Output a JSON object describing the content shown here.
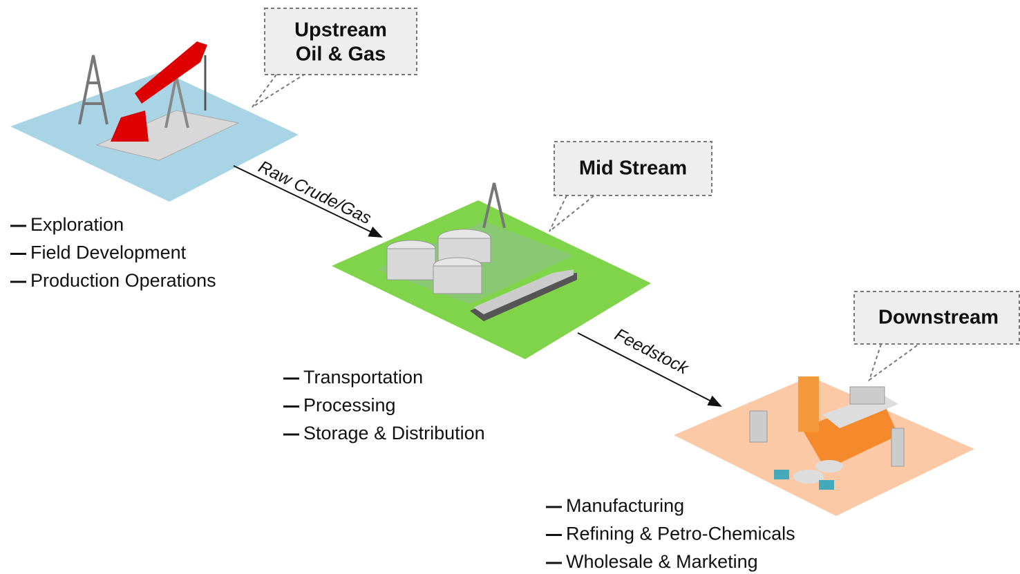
{
  "stages": [
    {
      "title_lines": [
        "Upstream",
        "Oil & Gas"
      ],
      "items": [
        "Exploration",
        "Field Development",
        "Production Operations"
      ]
    },
    {
      "title_lines": [
        "Mid Stream"
      ],
      "items": [
        "Transportation",
        "Processing",
        "Storage & Distribution"
      ]
    },
    {
      "title_lines": [
        "Downstream"
      ],
      "items": [
        "Manufacturing",
        "Refining & Petro-Chemicals",
        "Wholesale & Marketing"
      ]
    }
  ],
  "flows": [
    {
      "label": "Raw Crude/Gas"
    },
    {
      "label": "Feedstock"
    }
  ]
}
